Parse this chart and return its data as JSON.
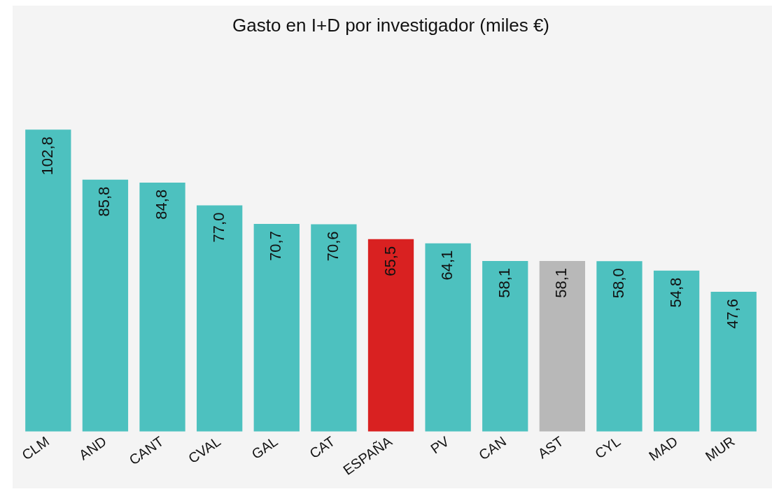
{
  "chart_data": {
    "type": "bar",
    "title": "Gasto en I+D por investigador (miles €)",
    "categories": [
      "CLM",
      "AND",
      "CANT",
      "CVAL",
      "GAL",
      "CAT",
      "ESPAÑA",
      "PV",
      "CAN",
      "AST",
      "CYL",
      "MAD",
      "MUR"
    ],
    "values": [
      102.8,
      85.8,
      84.8,
      77.0,
      70.7,
      70.6,
      65.5,
      64.1,
      58.1,
      58.1,
      58.0,
      54.8,
      47.6
    ],
    "value_labels": [
      "102,8",
      "85,8",
      "84,8",
      "77,0",
      "70,7",
      "70,6",
      "65,5",
      "64,1",
      "58,1",
      "58,1",
      "58,0",
      "54,8",
      "47,6"
    ],
    "colors": [
      "#4dc1bf",
      "#4dc1bf",
      "#4dc1bf",
      "#4dc1bf",
      "#4dc1bf",
      "#4dc1bf",
      "#d92121",
      "#4dc1bf",
      "#4dc1bf",
      "#b8b8b8",
      "#4dc1bf",
      "#4dc1bf",
      "#4dc1bf"
    ],
    "grid": false,
    "legend": false
  }
}
